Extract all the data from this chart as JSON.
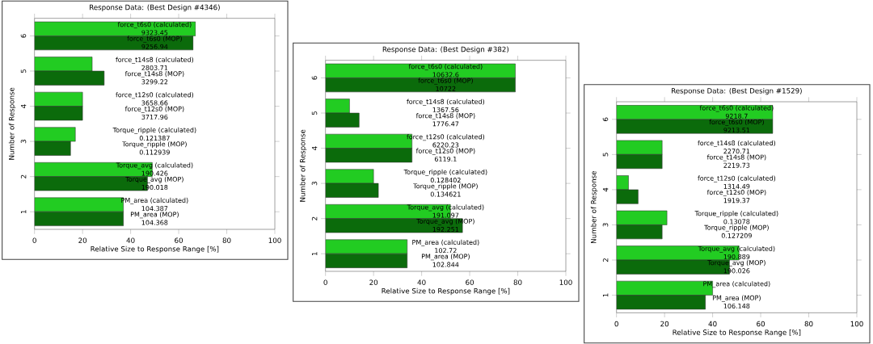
{
  "chart_data": [
    {
      "type": "bar",
      "orientation": "horizontal",
      "title": "Response Data: (Best Design #4346)",
      "xlabel": "Relative Size to Response Range [%]",
      "ylabel": "Number of Response",
      "categories": [
        "6",
        "5",
        "4",
        "3",
        "2",
        "1"
      ],
      "xlim": [
        0,
        100
      ],
      "xticks": [
        0,
        20,
        40,
        60,
        80,
        100
      ],
      "series": [
        {
          "color": "#22cc22",
          "values": [
            67,
            24,
            20,
            17,
            49,
            37
          ]
        },
        {
          "color": "#0b6b0b",
          "values": [
            66,
            29,
            20,
            15,
            47,
            37
          ]
        }
      ],
      "annotations": [
        "force_t6s0 (calculated)",
        "9323.45",
        "force_t6s0 (MOP)",
        "9256.94",
        "force_t14s8 (calculated)",
        "2803.71",
        "force_t14s8 (MOP)",
        "3299.22",
        "force_t12s0 (calculated)",
        "3658.66",
        "force_t12s0 (MOP)",
        "3717.96",
        "Torque_ripple (calculated)",
        "0.121387",
        "Torque_ripple (MOP)",
        "0.112939",
        "Torque_avg (calculated)",
        "190.426",
        "Torque_avg (MOP)",
        "190.018",
        "PM_area (calculated)",
        "104.387",
        "PM_area (MOP)",
        "104.368"
      ]
    },
    {
      "type": "bar",
      "orientation": "horizontal",
      "title": "Response Data: (Best Design #382)",
      "xlabel": "Relative Size to Response Range [%]",
      "ylabel": "Number of Response",
      "categories": [
        "6",
        "5",
        "4",
        "3",
        "2",
        "1"
      ],
      "xlim": [
        0,
        100
      ],
      "xticks": [
        0,
        20,
        40,
        60,
        80,
        100
      ],
      "series": [
        {
          "color": "#22cc22",
          "values": [
            79,
            10,
            36,
            20,
            52,
            34
          ]
        },
        {
          "color": "#0b6b0b",
          "values": [
            79,
            14,
            36,
            22,
            57,
            34
          ]
        }
      ],
      "annotations": [
        "force_t6s0 (calculated)",
        "10632.6",
        "force_t6s0 (MOP)",
        "10722",
        "force_t14s8 (calculated)",
        "1367.56",
        "force_t14s8 (MOP)",
        "1776.47",
        "force_t12s0 (calculated)",
        "6220.23",
        "force_t12s0 (MOP)",
        "6119.1",
        "Torque_ripple (calculated)",
        "0.128402",
        "Torque_ripple (MOP)",
        "0.134621",
        "Torque_avg (calculated)",
        "191.097",
        "Torque_avg (MOP)",
        "192.251",
        "PM_area (calculated)",
        "102.72",
        "PM_area (MOP)",
        "102.844"
      ]
    },
    {
      "type": "bar",
      "orientation": "horizontal",
      "title": "Response Data: (Best Design #1529)",
      "xlabel": "Relative Size to Response Range [%]",
      "ylabel": "Number of Response",
      "categories": [
        "6",
        "5",
        "4",
        "3",
        "2",
        "1"
      ],
      "xlim": [
        0,
        100
      ],
      "xticks": [
        0,
        20,
        40,
        60,
        80,
        100
      ],
      "series": [
        {
          "color": "#22cc22",
          "values": [
            65,
            19,
            5,
            21,
            51,
            40
          ]
        },
        {
          "color": "#0b6b0b",
          "values": [
            65,
            19,
            9,
            19,
            47,
            37
          ]
        }
      ],
      "annotations": [
        "force_t6s0 (calculated)",
        "9218.7",
        "force_t6s0 (MOP)",
        "9213.51",
        "force_t14s8 (calculated)",
        "2270.71",
        "force_t14s8 (MOP)",
        "2219.73",
        "force_t12s0 (calculated)",
        "1314.49",
        "force_t12s0 (MOP)",
        "1919.37",
        "Torque_ripple (calculated)",
        "0.13078",
        "Torque_ripple (MOP)",
        "0.127209",
        "Torque_avg (calculated)",
        "190.889",
        "Torque_avg (MOP)",
        "190.026",
        "PM_area (calculated)",
        null,
        "PM_area (MOP)",
        "106.148"
      ]
    }
  ]
}
